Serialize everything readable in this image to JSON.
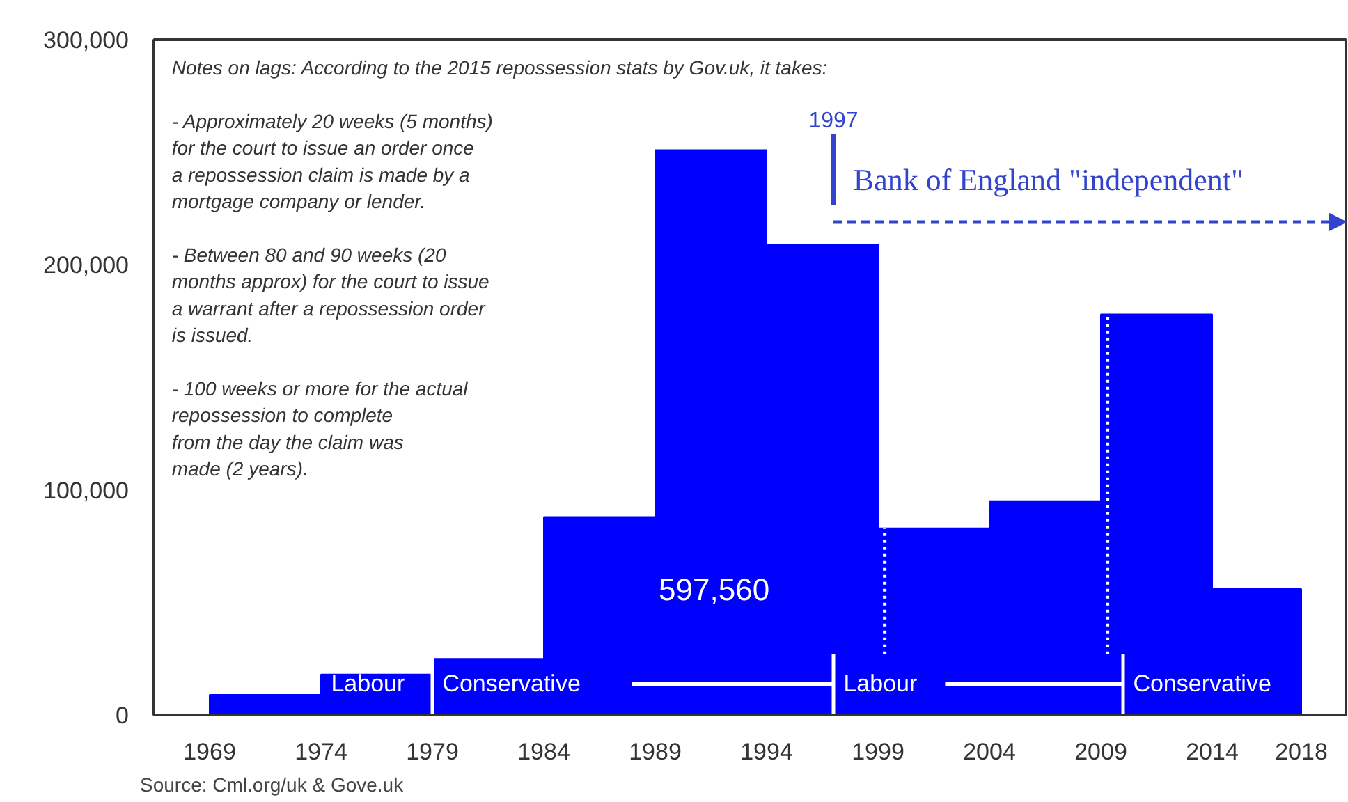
{
  "chart_data": {
    "type": "histogram",
    "bins": [
      1969,
      1974,
      1979,
      1984,
      1989,
      1994,
      1999,
      2004,
      2009,
      2014,
      2018
    ],
    "values": [
      9000,
      18000,
      25000,
      88000,
      251000,
      209000,
      83000,
      95000,
      178000,
      56000
    ],
    "color": "#0000ff",
    "xlim": [
      1966.5,
      2020
    ],
    "ylim": [
      0,
      300000
    ],
    "xticks": [
      1969,
      1974,
      1979,
      1984,
      1989,
      1994,
      1999,
      2004,
      2009,
      2014,
      2018
    ],
    "yticks": [
      {
        "value": 0,
        "label": "0"
      },
      {
        "value": 100000,
        "label": "100,000"
      },
      {
        "value": 200000,
        "label": "200,000"
      },
      {
        "value": 300000,
        "label": "300,000"
      }
    ],
    "grid": false,
    "ref_lines": [
      {
        "axis": "x",
        "value": 1997,
        "label": "1997",
        "color": "#3344cc",
        "line_style": "solid"
      },
      {
        "axis": "x",
        "value": 1979,
        "color": "#ffffff",
        "line_style": "solid"
      },
      {
        "axis": "x",
        "value": 1997,
        "color": "#ffffff",
        "line_style": "solid"
      },
      {
        "axis": "x",
        "value": 2010,
        "color": "#ffffff",
        "line_style": "solid"
      },
      {
        "axis": "x",
        "value": 1999.3,
        "color": "#ffffff",
        "line_style": "dotted"
      },
      {
        "axis": "x",
        "value": 2009.3,
        "color": "#ffffff",
        "line_style": "dotted"
      }
    ],
    "annotations": [
      "Notes on lags: According to the 2015 repossession stats by Gov.uk, it takes:\n\n- Approximately 20 weeks (5 months)\nfor the court to issue an order once\na repossession claim is made by a\nmortgage company or lender.\n\n- Between 80 and 90 weeks (20\nmonths approx) for the court to issue\na warrant after a repossession order\nis issued.\n\n- 100 weeks or more for the actual\nrepossession to complete\nfrom the day the claim was\nmade (2 years).",
      "597,560",
      "Bank of England \"independent\"",
      "Source: Cml.org/uk & Gove.uk",
      {
        "text": "Labour",
        "x": 1974,
        "y": 0
      },
      {
        "text": "Conservative",
        "x": 1979,
        "y": 0
      },
      {
        "text": "Labour",
        "x": 1997,
        "y": 0
      },
      {
        "text": "Conservative",
        "x": 2010,
        "y": 0
      }
    ]
  }
}
